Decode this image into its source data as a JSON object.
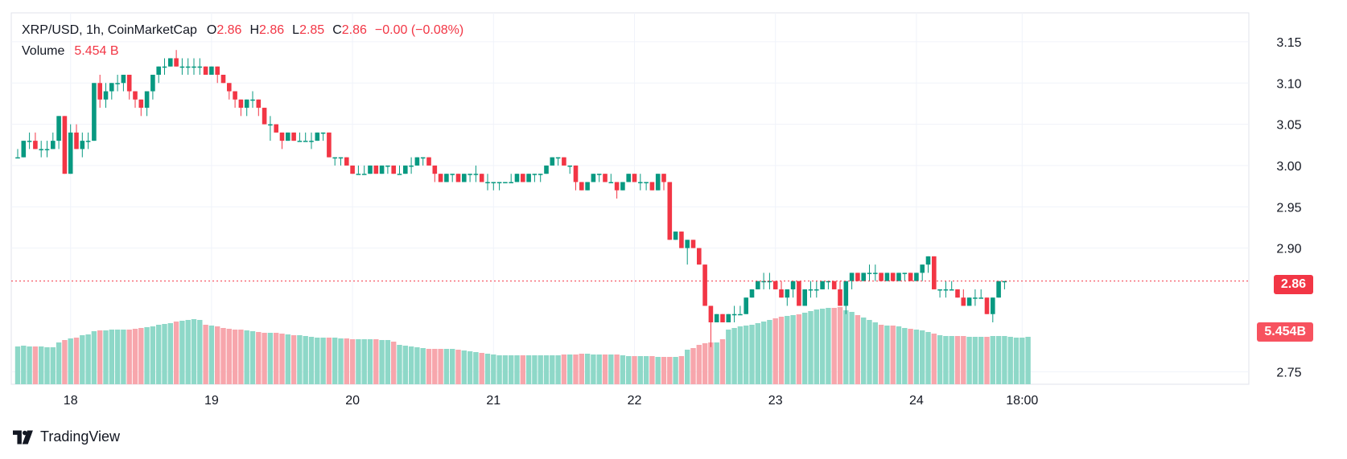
{
  "legend": {
    "symbol": "XRP/USD, 1h, CoinMarketCap",
    "open_label": "O",
    "open": "2.86",
    "high_label": "H",
    "high": "2.86",
    "low_label": "L",
    "low": "2.85",
    "close_label": "C",
    "close": "2.86",
    "change": "−0.00 (−0.08%)",
    "volume_label": "Volume",
    "volume_value": "5.454 B"
  },
  "price_tag": "2.86",
  "volume_tag": "5.454B",
  "brand": "TradingView",
  "colors": {
    "up": "#089981",
    "down": "#f23645",
    "volume_up": "#8ed8c8",
    "volume_down": "#f7a6ac",
    "grid": "#f0f3fa",
    "text": "#131722"
  },
  "chart_data": {
    "type": "candlestick",
    "ylim": [
      2.735,
      3.185
    ],
    "y_ticks": [
      "3.15",
      "3.10",
      "3.05",
      "3.00",
      "2.95",
      "2.90",
      "2.75"
    ],
    "x_tick_labels": [
      "18",
      "19",
      "20",
      "21",
      "22",
      "23",
      "24",
      "18:00"
    ],
    "last_price": 2.86,
    "current_volume": "5.454B",
    "candles": [
      [
        3.01,
        3.02,
        3.01,
        3.01
      ],
      [
        3.01,
        3.03,
        3.01,
        3.03
      ],
      [
        3.03,
        3.04,
        3.02,
        3.03
      ],
      [
        3.03,
        3.04,
        3.02,
        3.02
      ],
      [
        3.02,
        3.03,
        3.01,
        3.02
      ],
      [
        3.02,
        3.03,
        3.01,
        3.02
      ],
      [
        3.02,
        3.04,
        3.02,
        3.03
      ],
      [
        3.03,
        3.06,
        3.02,
        3.06
      ],
      [
        3.06,
        3.06,
        2.99,
        2.99
      ],
      [
        2.99,
        3.05,
        2.99,
        3.04
      ],
      [
        3.04,
        3.05,
        3.02,
        3.02
      ],
      [
        3.02,
        3.04,
        3.01,
        3.03
      ],
      [
        3.03,
        3.04,
        3.02,
        3.03
      ],
      [
        3.03,
        3.1,
        3.03,
        3.1
      ],
      [
        3.1,
        3.11,
        3.07,
        3.08
      ],
      [
        3.08,
        3.1,
        3.07,
        3.09
      ],
      [
        3.09,
        3.1,
        3.08,
        3.1
      ],
      [
        3.1,
        3.11,
        3.09,
        3.1
      ],
      [
        3.1,
        3.11,
        3.09,
        3.11
      ],
      [
        3.11,
        3.11,
        3.08,
        3.09
      ],
      [
        3.09,
        3.09,
        3.07,
        3.08
      ],
      [
        3.08,
        3.08,
        3.06,
        3.07
      ],
      [
        3.07,
        3.09,
        3.06,
        3.09
      ],
      [
        3.09,
        3.11,
        3.08,
        3.11
      ],
      [
        3.11,
        3.12,
        3.1,
        3.12
      ],
      [
        3.12,
        3.13,
        3.11,
        3.12
      ],
      [
        3.12,
        3.13,
        3.12,
        3.13
      ],
      [
        3.13,
        3.14,
        3.12,
        3.12
      ],
      [
        3.12,
        3.13,
        3.11,
        3.12
      ],
      [
        3.12,
        3.13,
        3.11,
        3.12
      ],
      [
        3.12,
        3.13,
        3.11,
        3.12
      ],
      [
        3.12,
        3.13,
        3.11,
        3.12
      ],
      [
        3.12,
        3.12,
        3.11,
        3.11
      ],
      [
        3.11,
        3.12,
        3.11,
        3.12
      ],
      [
        3.12,
        3.12,
        3.1,
        3.11
      ],
      [
        3.11,
        3.11,
        3.1,
        3.1
      ],
      [
        3.1,
        3.1,
        3.08,
        3.09
      ],
      [
        3.09,
        3.09,
        3.07,
        3.08
      ],
      [
        3.08,
        3.08,
        3.06,
        3.07
      ],
      [
        3.07,
        3.08,
        3.06,
        3.08
      ],
      [
        3.08,
        3.09,
        3.07,
        3.08
      ],
      [
        3.08,
        3.08,
        3.06,
        3.07
      ],
      [
        3.07,
        3.07,
        3.05,
        3.05
      ],
      [
        3.05,
        3.06,
        3.03,
        3.05
      ],
      [
        3.05,
        3.05,
        3.04,
        3.04
      ],
      [
        3.04,
        3.04,
        3.02,
        3.03
      ],
      [
        3.03,
        3.04,
        3.03,
        3.04
      ],
      [
        3.04,
        3.04,
        3.03,
        3.03
      ],
      [
        3.03,
        3.04,
        3.03,
        3.03
      ],
      [
        3.03,
        3.04,
        3.03,
        3.03
      ],
      [
        3.03,
        3.04,
        3.02,
        3.03
      ],
      [
        3.03,
        3.04,
        3.03,
        3.04
      ],
      [
        3.04,
        3.04,
        3.03,
        3.04
      ],
      [
        3.04,
        3.04,
        3.01,
        3.01
      ],
      [
        3.01,
        3.01,
        3.0,
        3.01
      ],
      [
        3.01,
        3.01,
        3.0,
        3.01
      ],
      [
        3.01,
        3.01,
        3.0,
        3.0
      ],
      [
        3.0,
        3.0,
        2.99,
        2.99
      ],
      [
        2.99,
        3.0,
        2.99,
        2.99
      ],
      [
        2.99,
        3.0,
        2.99,
        2.99
      ],
      [
        2.99,
        3.0,
        2.99,
        3.0
      ],
      [
        3.0,
        3.0,
        2.99,
        2.99
      ],
      [
        2.99,
        3.0,
        2.99,
        3.0
      ],
      [
        3.0,
        3.0,
        2.99,
        3.0
      ],
      [
        3.0,
        3.0,
        2.99,
        2.99
      ],
      [
        2.99,
        3.0,
        2.99,
        2.99
      ],
      [
        2.99,
        3.0,
        2.99,
        3.0
      ],
      [
        3.0,
        3.01,
        2.99,
        3.0
      ],
      [
        3.0,
        3.01,
        3.0,
        3.01
      ],
      [
        3.01,
        3.01,
        3.0,
        3.01
      ],
      [
        3.01,
        3.01,
        3.0,
        3.0
      ],
      [
        3.0,
        3.0,
        2.98,
        2.99
      ],
      [
        2.99,
        2.99,
        2.98,
        2.98
      ],
      [
        2.98,
        2.99,
        2.98,
        2.99
      ],
      [
        2.99,
        2.99,
        2.98,
        2.99
      ],
      [
        2.99,
        2.99,
        2.98,
        2.98
      ],
      [
        2.98,
        2.99,
        2.98,
        2.99
      ],
      [
        2.99,
        2.99,
        2.98,
        2.99
      ],
      [
        2.99,
        3.0,
        2.98,
        2.99
      ],
      [
        2.99,
        2.99,
        2.98,
        2.98
      ],
      [
        2.98,
        2.99,
        2.97,
        2.98
      ],
      [
        2.98,
        2.98,
        2.97,
        2.98
      ],
      [
        2.98,
        2.98,
        2.97,
        2.98
      ],
      [
        2.98,
        2.98,
        2.98,
        2.98
      ],
      [
        2.98,
        2.99,
        2.98,
        2.98
      ],
      [
        2.98,
        2.99,
        2.98,
        2.99
      ],
      [
        2.99,
        2.99,
        2.98,
        2.98
      ],
      [
        2.98,
        2.99,
        2.98,
        2.99
      ],
      [
        2.99,
        2.99,
        2.98,
        2.99
      ],
      [
        2.99,
        2.99,
        2.98,
        2.99
      ],
      [
        2.99,
        3.0,
        2.99,
        3.0
      ],
      [
        3.0,
        3.01,
        3.0,
        3.01
      ],
      [
        3.01,
        3.01,
        3.0,
        3.01
      ],
      [
        3.01,
        3.01,
        3.0,
        3.0
      ],
      [
        3.0,
        3.0,
        2.99,
        3.0
      ],
      [
        3.0,
        3.0,
        2.97,
        2.98
      ],
      [
        2.98,
        2.98,
        2.97,
        2.97
      ],
      [
        2.97,
        2.98,
        2.97,
        2.98
      ],
      [
        2.98,
        2.99,
        2.98,
        2.99
      ],
      [
        2.99,
        2.99,
        2.98,
        2.99
      ],
      [
        2.99,
        2.99,
        2.98,
        2.98
      ],
      [
        2.98,
        2.99,
        2.98,
        2.98
      ],
      [
        2.98,
        2.98,
        2.96,
        2.97
      ],
      [
        2.97,
        2.98,
        2.97,
        2.98
      ],
      [
        2.98,
        2.99,
        2.98,
        2.99
      ],
      [
        2.99,
        2.99,
        2.98,
        2.98
      ],
      [
        2.98,
        2.99,
        2.97,
        2.98
      ],
      [
        2.98,
        2.98,
        2.97,
        2.98
      ],
      [
        2.98,
        2.98,
        2.97,
        2.97
      ],
      [
        2.97,
        2.99,
        2.97,
        2.99
      ],
      [
        2.99,
        2.99,
        2.97,
        2.98
      ],
      [
        2.98,
        2.98,
        2.91,
        2.91
      ],
      [
        2.91,
        2.92,
        2.91,
        2.92
      ],
      [
        2.92,
        2.92,
        2.9,
        2.9
      ],
      [
        2.9,
        2.91,
        2.88,
        2.91
      ],
      [
        2.91,
        2.91,
        2.9,
        2.9
      ],
      [
        2.9,
        2.9,
        2.88,
        2.88
      ],
      [
        2.88,
        2.88,
        2.83,
        2.83
      ],
      [
        2.83,
        2.83,
        2.78,
        2.81
      ],
      [
        2.81,
        2.82,
        2.81,
        2.82
      ],
      [
        2.82,
        2.82,
        2.81,
        2.81
      ],
      [
        2.81,
        2.82,
        2.81,
        2.82
      ],
      [
        2.82,
        2.83,
        2.81,
        2.82
      ],
      [
        2.82,
        2.83,
        2.82,
        2.82
      ],
      [
        2.82,
        2.84,
        2.82,
        2.84
      ],
      [
        2.84,
        2.85,
        2.84,
        2.85
      ],
      [
        2.85,
        2.86,
        2.85,
        2.86
      ],
      [
        2.86,
        2.87,
        2.85,
        2.86
      ],
      [
        2.86,
        2.87,
        2.85,
        2.86
      ],
      [
        2.86,
        2.86,
        2.85,
        2.85
      ],
      [
        2.85,
        2.86,
        2.84,
        2.84
      ],
      [
        2.84,
        2.85,
        2.83,
        2.85
      ],
      [
        2.85,
        2.86,
        2.84,
        2.86
      ],
      [
        2.86,
        2.86,
        2.83,
        2.83
      ],
      [
        2.83,
        2.85,
        2.83,
        2.85
      ],
      [
        2.85,
        2.86,
        2.84,
        2.85
      ],
      [
        2.85,
        2.86,
        2.84,
        2.85
      ],
      [
        2.85,
        2.86,
        2.85,
        2.86
      ],
      [
        2.86,
        2.86,
        2.85,
        2.86
      ],
      [
        2.86,
        2.86,
        2.85,
        2.85
      ],
      [
        2.85,
        2.86,
        2.83,
        2.83
      ],
      [
        2.83,
        2.86,
        2.82,
        2.86
      ],
      [
        2.86,
        2.87,
        2.85,
        2.87
      ],
      [
        2.87,
        2.87,
        2.86,
        2.86
      ],
      [
        2.86,
        2.87,
        2.86,
        2.87
      ],
      [
        2.87,
        2.88,
        2.86,
        2.87
      ],
      [
        2.87,
        2.88,
        2.86,
        2.87
      ],
      [
        2.87,
        2.87,
        2.86,
        2.86
      ],
      [
        2.86,
        2.87,
        2.86,
        2.87
      ],
      [
        2.87,
        2.87,
        2.86,
        2.86
      ],
      [
        2.86,
        2.87,
        2.86,
        2.87
      ],
      [
        2.87,
        2.87,
        2.86,
        2.87
      ],
      [
        2.87,
        2.87,
        2.86,
        2.86
      ],
      [
        2.86,
        2.87,
        2.86,
        2.87
      ],
      [
        2.87,
        2.88,
        2.86,
        2.88
      ],
      [
        2.88,
        2.89,
        2.87,
        2.89
      ],
      [
        2.89,
        2.89,
        2.85,
        2.85
      ],
      [
        2.85,
        2.85,
        2.84,
        2.85
      ],
      [
        2.85,
        2.86,
        2.84,
        2.85
      ],
      [
        2.85,
        2.86,
        2.85,
        2.85
      ],
      [
        2.85,
        2.85,
        2.84,
        2.84
      ],
      [
        2.84,
        2.85,
        2.83,
        2.83
      ],
      [
        2.83,
        2.84,
        2.83,
        2.84
      ],
      [
        2.84,
        2.85,
        2.83,
        2.84
      ],
      [
        2.84,
        2.85,
        2.84,
        2.84
      ],
      [
        2.84,
        2.84,
        2.82,
        2.82
      ],
      [
        2.82,
        2.84,
        2.81,
        2.84
      ],
      [
        2.84,
        2.86,
        2.84,
        2.86
      ],
      [
        2.86,
        2.86,
        2.85,
        2.86
      ]
    ],
    "volume_levels": [
      0.47,
      0.48,
      0.47,
      0.47,
      0.47,
      0.46,
      0.46,
      0.52,
      0.55,
      0.57,
      0.58,
      0.61,
      0.62,
      0.66,
      0.67,
      0.67,
      0.68,
      0.68,
      0.68,
      0.68,
      0.69,
      0.7,
      0.71,
      0.72,
      0.74,
      0.75,
      0.76,
      0.78,
      0.79,
      0.8,
      0.81,
      0.8,
      0.74,
      0.73,
      0.72,
      0.7,
      0.69,
      0.68,
      0.68,
      0.67,
      0.66,
      0.65,
      0.64,
      0.64,
      0.64,
      0.63,
      0.62,
      0.61,
      0.61,
      0.6,
      0.59,
      0.58,
      0.58,
      0.58,
      0.58,
      0.57,
      0.57,
      0.56,
      0.56,
      0.56,
      0.56,
      0.56,
      0.55,
      0.55,
      0.53,
      0.49,
      0.48,
      0.47,
      0.46,
      0.45,
      0.44,
      0.44,
      0.44,
      0.44,
      0.44,
      0.43,
      0.42,
      0.41,
      0.4,
      0.39,
      0.38,
      0.37,
      0.36,
      0.36,
      0.36,
      0.36,
      0.36,
      0.36,
      0.36,
      0.36,
      0.36,
      0.36,
      0.36,
      0.37,
      0.37,
      0.37,
      0.38,
      0.38,
      0.37,
      0.37,
      0.37,
      0.37,
      0.37,
      0.36,
      0.35,
      0.35,
      0.35,
      0.35,
      0.35,
      0.34,
      0.34,
      0.34,
      0.34,
      0.35,
      0.43,
      0.45,
      0.49,
      0.51,
      0.52,
      0.52,
      0.56,
      0.68,
      0.7,
      0.72,
      0.73,
      0.74,
      0.76,
      0.78,
      0.8,
      0.82,
      0.84,
      0.85,
      0.86,
      0.87,
      0.89,
      0.91,
      0.93,
      0.94,
      0.95,
      0.95,
      0.96,
      0.92,
      0.9,
      0.86,
      0.83,
      0.8,
      0.77,
      0.74,
      0.73,
      0.73,
      0.72,
      0.7,
      0.69,
      0.68,
      0.67,
      0.65,
      0.63,
      0.61,
      0.6,
      0.6,
      0.6,
      0.6,
      0.59,
      0.59,
      0.59,
      0.59,
      0.6,
      0.6,
      0.6,
      0.59,
      0.58,
      0.58,
      0.59
    ]
  }
}
